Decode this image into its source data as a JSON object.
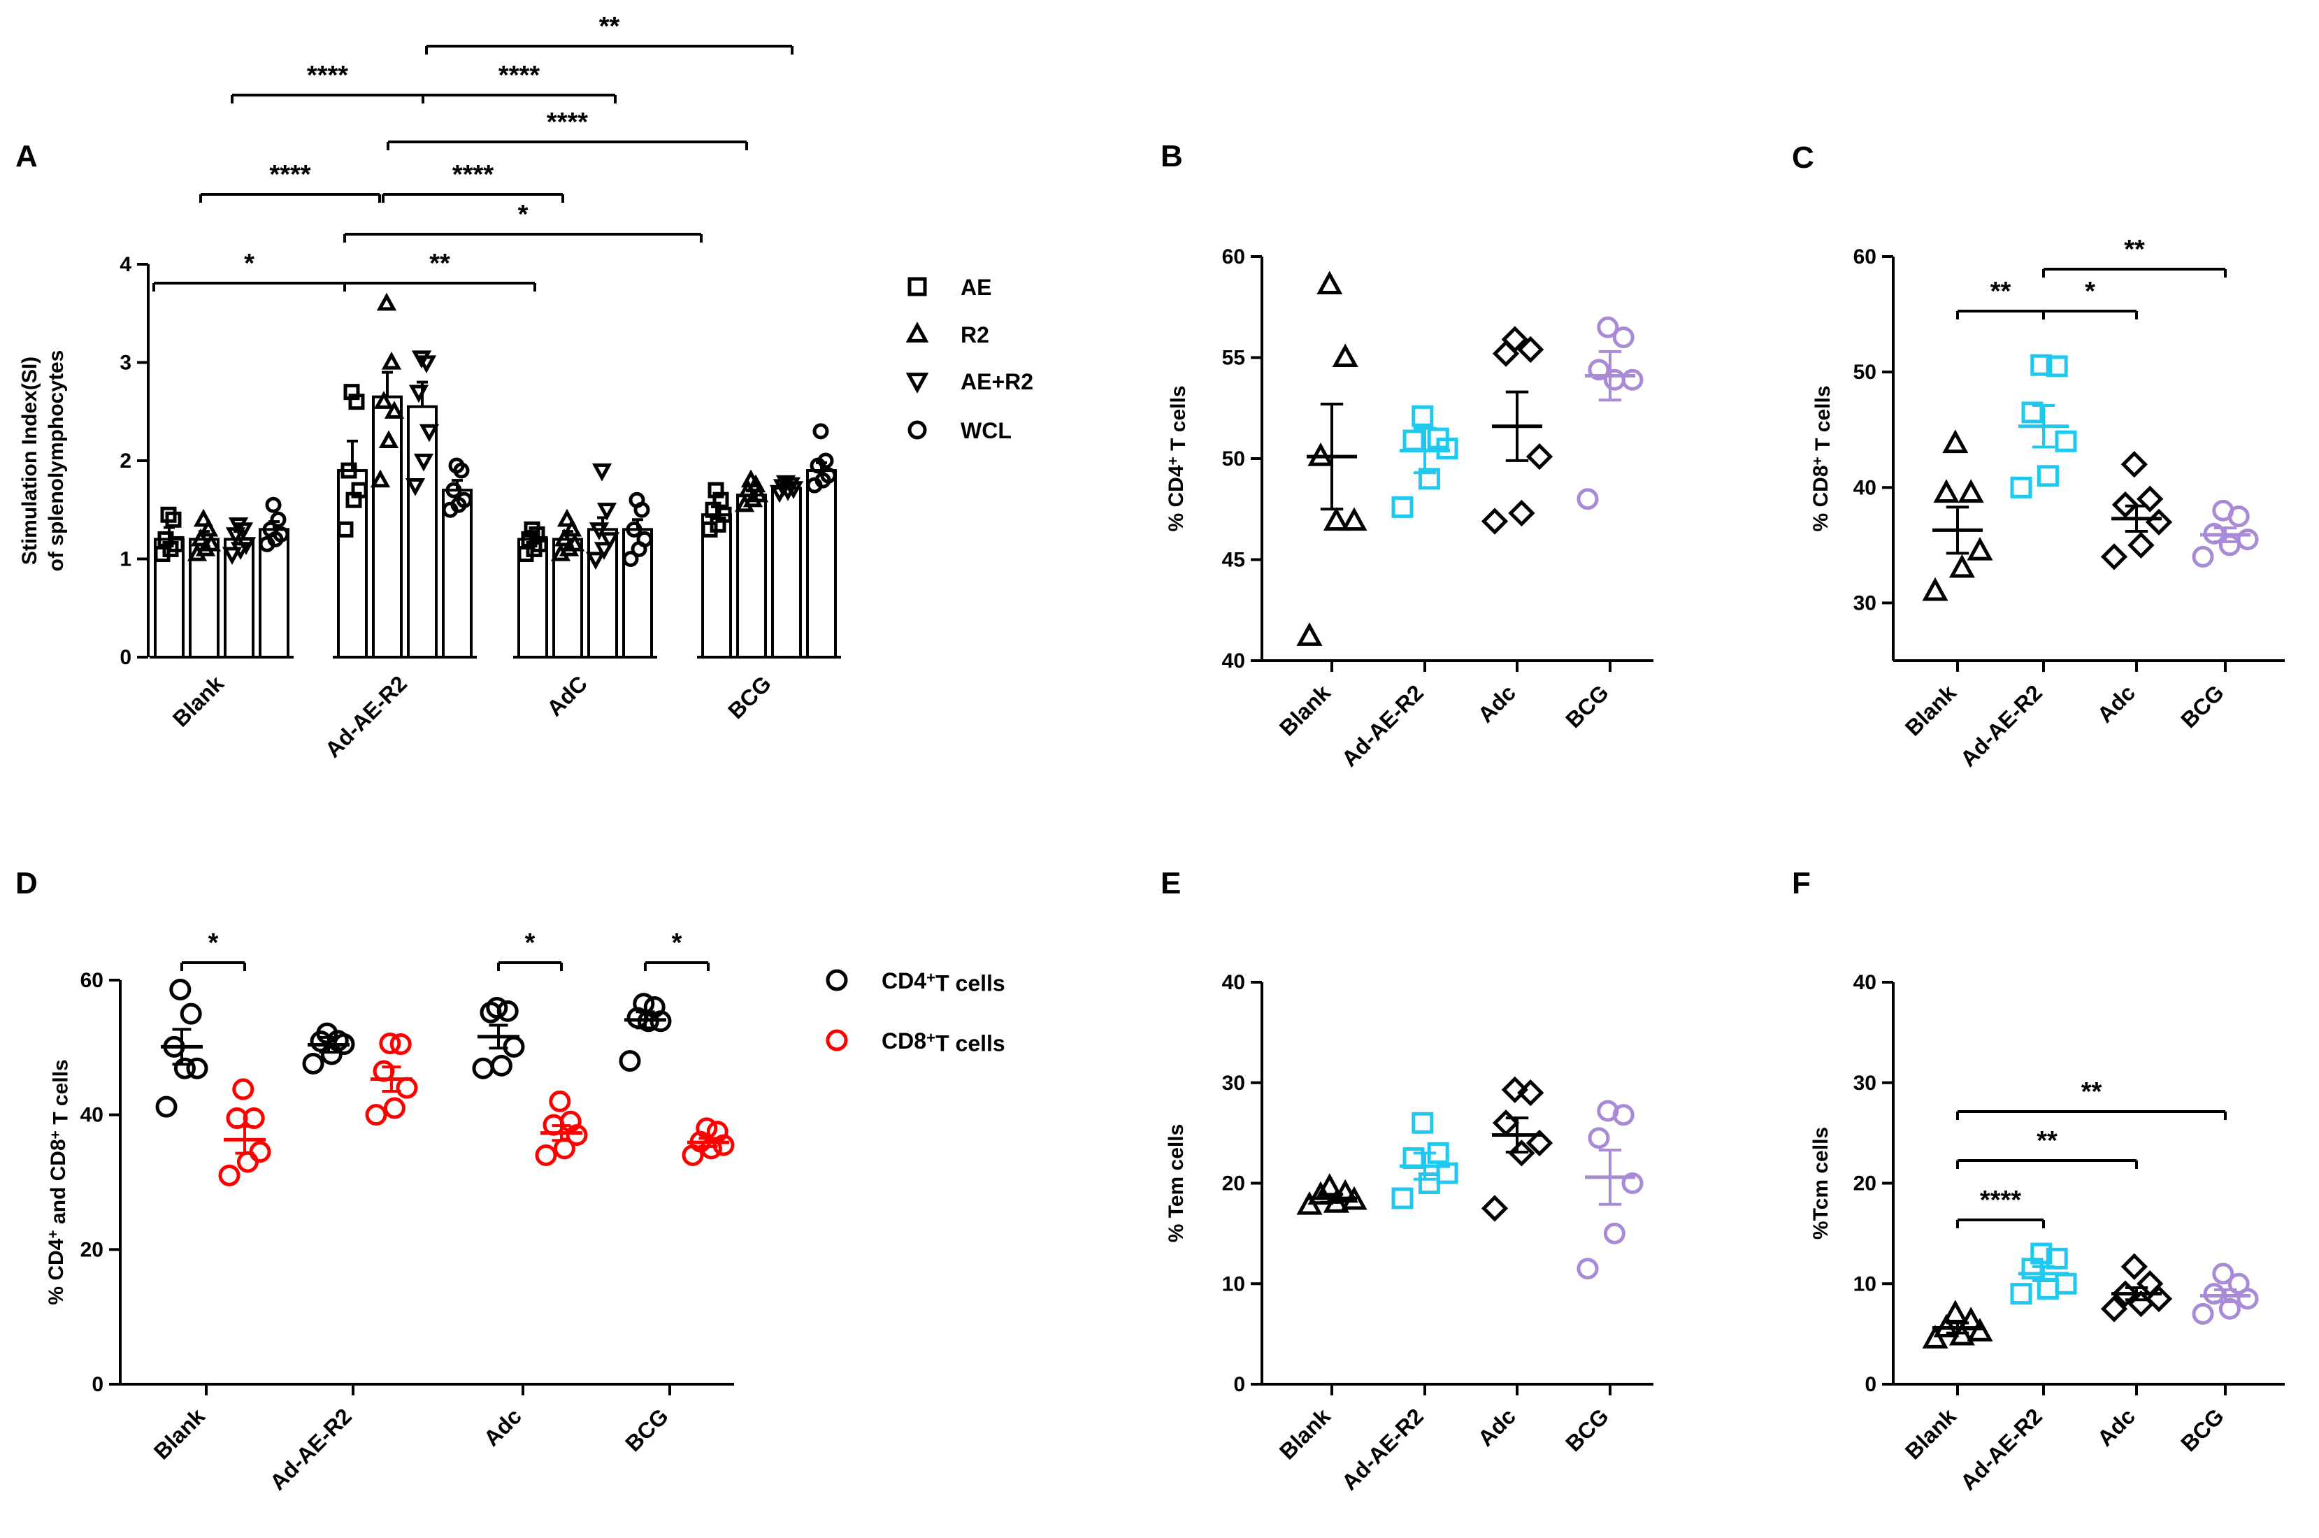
{
  "chart_data": [
    {
      "panel": "A",
      "type": "bar",
      "ylabel_line1": "Stimulation Index(SI)",
      "ylabel_line2": "of splenolymphocytes",
      "ylim": [
        0,
        4
      ],
      "yticks": [
        0,
        1,
        2,
        3,
        4
      ],
      "categories": [
        "Blank",
        "Ad-AE-R2",
        "AdC",
        "BCG"
      ],
      "series": [
        {
          "name": "AE",
          "marker": "square",
          "values": [
            1.2,
            1.9,
            1.2,
            1.45
          ],
          "sem": [
            0.12,
            0.3,
            0.08,
            0.08
          ],
          "points": [
            [
              1.05,
              1.1,
              1.15,
              1.2,
              1.4,
              1.45
            ],
            [
              1.3,
              1.6,
              1.7,
              1.9,
              2.6,
              2.7
            ],
            [
              1.05,
              1.1,
              1.15,
              1.2,
              1.25,
              1.3
            ],
            [
              1.3,
              1.35,
              1.45,
              1.5,
              1.6,
              1.7
            ]
          ]
        },
        {
          "name": "R2",
          "marker": "triangle",
          "values": [
            1.2,
            2.65,
            1.2,
            1.65
          ],
          "sem": [
            0.08,
            0.25,
            0.08,
            0.05
          ],
          "points": [
            [
              1.05,
              1.1,
              1.15,
              1.2,
              1.3,
              1.4
            ],
            [
              1.8,
              2.2,
              2.5,
              2.6,
              3.0,
              3.6
            ],
            [
              1.05,
              1.1,
              1.15,
              1.2,
              1.3,
              1.4
            ],
            [
              1.55,
              1.6,
              1.65,
              1.7,
              1.75,
              1.8
            ]
          ]
        },
        {
          "name": "AE+R2",
          "marker": "triangle-down",
          "values": [
            1.2,
            2.55,
            1.3,
            1.72
          ],
          "sem": [
            0.08,
            0.25,
            0.12,
            0.03
          ],
          "points": [
            [
              1.05,
              1.1,
              1.15,
              1.25,
              1.3,
              1.35
            ],
            [
              1.75,
              2.0,
              2.3,
              2.7,
              3.0,
              3.05
            ],
            [
              1.0,
              1.1,
              1.2,
              1.3,
              1.5,
              1.9
            ],
            [
              1.68,
              1.7,
              1.72,
              1.74,
              1.76,
              1.78
            ]
          ]
        },
        {
          "name": "WCL",
          "marker": "circle",
          "values": [
            1.3,
            1.7,
            1.3,
            1.9
          ],
          "sem": [
            0.08,
            0.1,
            0.1,
            0.08
          ],
          "points": [
            [
              1.15,
              1.2,
              1.25,
              1.3,
              1.4,
              1.55
            ],
            [
              1.5,
              1.55,
              1.6,
              1.7,
              1.9,
              1.95
            ],
            [
              1.0,
              1.1,
              1.2,
              1.3,
              1.5,
              1.6
            ],
            [
              1.75,
              1.8,
              1.85,
              1.95,
              2.0,
              2.3
            ]
          ]
        }
      ],
      "significance": [
        {
          "from": [
            0,
            0
          ],
          "to": [
            1,
            0
          ],
          "label": "*"
        },
        {
          "from": [
            1,
            0
          ],
          "to": [
            2,
            0
          ],
          "label": "**"
        },
        {
          "from": [
            1,
            0
          ],
          "to": [
            3,
            0
          ],
          "label": "*"
        },
        {
          "from": [
            0,
            1
          ],
          "to": [
            1,
            1
          ],
          "label": "****"
        },
        {
          "from": [
            1,
            1
          ],
          "to": [
            2,
            1
          ],
          "label": "****"
        },
        {
          "from": [
            1,
            2
          ],
          "to": [
            3,
            2
          ],
          "label": "****"
        },
        {
          "from": [
            0,
            2
          ],
          "to": [
            1,
            2
          ],
          "label": "****"
        },
        {
          "from": [
            1,
            2
          ],
          "to": [
            2,
            2
          ],
          "label": "****"
        },
        {
          "from": [
            1,
            3
          ],
          "to": [
            3,
            3
          ],
          "label": "**"
        }
      ]
    },
    {
      "panel": "B",
      "type": "scatter",
      "ylabel": "% CD4⁺ T cells",
      "ylim": [
        40,
        60
      ],
      "yticks": [
        40,
        45,
        50,
        55,
        60
      ],
      "categories": [
        "Blank",
        "Ad-AE-R2",
        "Adc",
        "BCG"
      ],
      "groups": [
        {
          "marker": "triangle",
          "color": "#000000",
          "mean": 50.1,
          "sem": 2.6,
          "points": [
            41.2,
            46.9,
            46.9,
            50.1,
            55.0,
            58.6
          ]
        },
        {
          "marker": "square",
          "color": "#1ec8ee",
          "mean": 50.4,
          "sem": 1.1,
          "points": [
            47.6,
            49.0,
            50.5,
            50.9,
            51.0,
            52.1
          ]
        },
        {
          "marker": "diamond",
          "color": "#000000",
          "mean": 51.6,
          "sem": 1.7,
          "points": [
            46.9,
            47.3,
            50.1,
            55.2,
            55.4,
            55.9
          ]
        },
        {
          "marker": "circle",
          "color": "#a98ad6",
          "mean": 54.1,
          "sem": 1.2,
          "points": [
            48.0,
            53.9,
            53.9,
            54.4,
            56.0,
            56.5
          ]
        }
      ],
      "significance": []
    },
    {
      "panel": "C",
      "type": "scatter",
      "ylabel": "% CD8⁺ T cells",
      "ylim": [
        25,
        60
      ],
      "yticks": [
        30,
        40,
        50,
        60
      ],
      "categories": [
        "Blank",
        "Ad-AE-R2",
        "Adc",
        "BCG"
      ],
      "groups": [
        {
          "marker": "triangle",
          "color": "#000000",
          "mean": 36.3,
          "sem": 2.0,
          "points": [
            31.0,
            33.0,
            34.5,
            39.5,
            39.5,
            43.8
          ]
        },
        {
          "marker": "square",
          "color": "#1ec8ee",
          "mean": 45.3,
          "sem": 1.8,
          "points": [
            40.0,
            41.0,
            44.0,
            46.5,
            50.5,
            50.6
          ]
        },
        {
          "marker": "diamond",
          "color": "#000000",
          "mean": 37.3,
          "sem": 1.1,
          "points": [
            34.0,
            35.0,
            37.0,
            38.5,
            39.0,
            42.0
          ]
        },
        {
          "marker": "circle",
          "color": "#a98ad6",
          "mean": 35.9,
          "sem": 0.6,
          "points": [
            34.0,
            35.0,
            35.5,
            36.0,
            37.5,
            38.0
          ]
        }
      ],
      "significance": [
        {
          "from": 0,
          "to": 1,
          "label": "**",
          "level": 0
        },
        {
          "from": 1,
          "to": 2,
          "label": "*",
          "level": 0
        },
        {
          "from": 1,
          "to": 3,
          "label": "**",
          "level": 1
        }
      ]
    },
    {
      "panel": "D",
      "type": "scatter",
      "ylabel": "% CD4⁺ and CD8⁺ T cells",
      "ylim": [
        0,
        60
      ],
      "yticks": [
        0,
        20,
        40,
        60
      ],
      "categories": [
        "Blank",
        "Ad-AE-R2",
        "Adc",
        "BCG"
      ],
      "legend": [
        {
          "label": "CD4⁺T cells",
          "color": "#000000"
        },
        {
          "label": "CD8⁺T cells",
          "color": "#ff0000"
        }
      ],
      "series": [
        {
          "name": "CD4⁺T cells",
          "color": "#000000",
          "means": [
            50.1,
            50.4,
            51.6,
            54.1
          ],
          "sem": [
            2.6,
            1.1,
            1.7,
            1.2
          ],
          "points": [
            [
              41.2,
              46.9,
              46.9,
              50.1,
              55.0,
              58.6
            ],
            [
              47.6,
              49.0,
              50.5,
              50.9,
              51.0,
              52.1
            ],
            [
              46.9,
              47.3,
              50.1,
              55.2,
              55.4,
              55.9
            ],
            [
              48.0,
              53.9,
              53.9,
              54.4,
              56.0,
              56.5
            ]
          ]
        },
        {
          "name": "CD8⁺T cells",
          "color": "#ff0000",
          "means": [
            36.3,
            45.3,
            37.3,
            35.9
          ],
          "sem": [
            2.0,
            1.8,
            1.1,
            0.6
          ],
          "points": [
            [
              31.0,
              33.0,
              34.5,
              39.5,
              39.5,
              43.8
            ],
            [
              40.0,
              41.0,
              44.0,
              46.5,
              50.5,
              50.6
            ],
            [
              34.0,
              35.0,
              37.0,
              38.5,
              39.0,
              42.0
            ],
            [
              34.0,
              35.0,
              35.5,
              36.0,
              37.5,
              38.0
            ]
          ]
        }
      ],
      "significance": [
        {
          "category": 0,
          "label": "*"
        },
        {
          "category": 2,
          "label": "*"
        },
        {
          "category": 3,
          "label": "*"
        }
      ]
    },
    {
      "panel": "E",
      "type": "scatter",
      "ylabel": "% Tem cells",
      "ylim": [
        0,
        40
      ],
      "yticks": [
        0,
        10,
        20,
        30,
        40
      ],
      "categories": [
        "Blank",
        "Ad-AE-R2",
        "Adc",
        "BCG"
      ],
      "groups": [
        {
          "marker": "triangle",
          "color": "#000000",
          "mean": 18.5,
          "sem": 0.4,
          "points": [
            17.8,
            18.0,
            18.3,
            18.8,
            19.0,
            19.6
          ]
        },
        {
          "marker": "square",
          "color": "#1ec8ee",
          "mean": 21.7,
          "sem": 1.3,
          "points": [
            18.5,
            20.0,
            21.0,
            22.5,
            23.0,
            26.0
          ]
        },
        {
          "marker": "diamond",
          "color": "#000000",
          "mean": 24.8,
          "sem": 1.7,
          "points": [
            17.5,
            23.0,
            24.0,
            26.0,
            29.0,
            29.3
          ]
        },
        {
          "marker": "circle",
          "color": "#a98ad6",
          "mean": 20.6,
          "sem": 2.7,
          "points": [
            11.5,
            15.0,
            20.0,
            24.5,
            26.8,
            27.2
          ]
        }
      ],
      "significance": []
    },
    {
      "panel": "F",
      "type": "scatter",
      "ylabel": "%Tcm cells",
      "ylim": [
        0,
        40
      ],
      "yticks": [
        0,
        10,
        20,
        30,
        40
      ],
      "categories": [
        "Blank",
        "Ad-AE-R2",
        "Adc",
        "BCG"
      ],
      "groups": [
        {
          "marker": "triangle",
          "color": "#000000",
          "mean": 5.6,
          "sem": 0.5,
          "points": [
            4.5,
            4.8,
            5.2,
            5.6,
            6.3,
            7.0
          ]
        },
        {
          "marker": "square",
          "color": "#1ec8ee",
          "mean": 11.0,
          "sem": 0.7,
          "points": [
            9.0,
            9.5,
            10.0,
            11.5,
            12.5,
            13.0
          ]
        },
        {
          "marker": "diamond",
          "color": "#000000",
          "mean": 9.0,
          "sem": 0.6,
          "points": [
            7.5,
            8.0,
            8.5,
            9.0,
            10.0,
            11.7
          ]
        },
        {
          "marker": "circle",
          "color": "#a98ad6",
          "mean": 8.8,
          "sem": 0.6,
          "points": [
            7.0,
            7.5,
            8.5,
            9.0,
            10.0,
            11.0
          ]
        }
      ],
      "significance": [
        {
          "from": 0,
          "to": 1,
          "label": "****",
          "level": 0
        },
        {
          "from": 0,
          "to": 2,
          "label": "**",
          "level": 1
        },
        {
          "from": 0,
          "to": 3,
          "label": "**",
          "level": 2
        }
      ]
    }
  ]
}
